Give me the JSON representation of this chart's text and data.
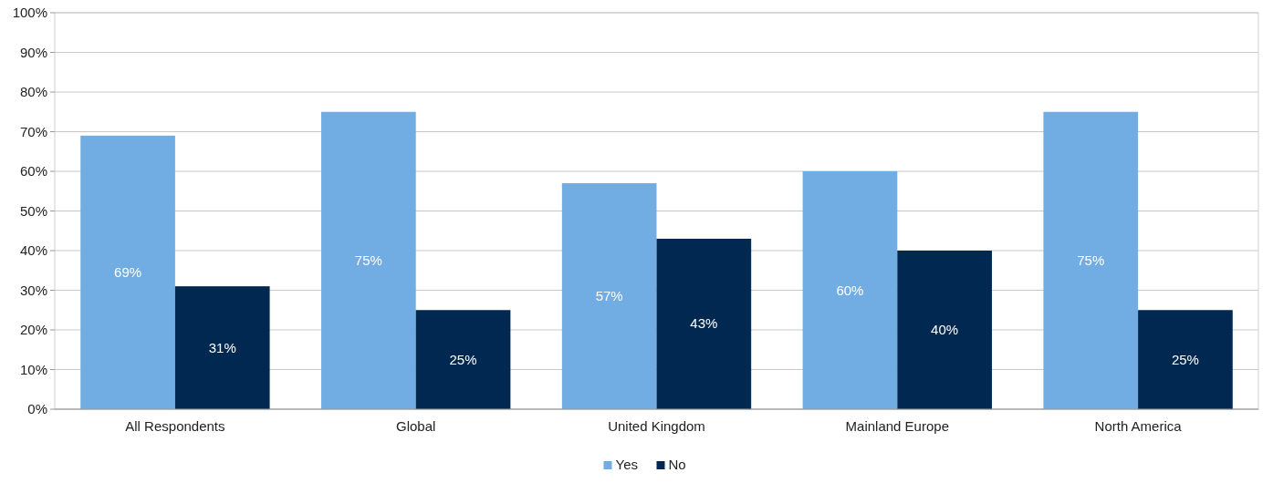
{
  "chart_data": {
    "type": "bar",
    "categories": [
      "All Respondents",
      "Global",
      "United Kingdom",
      "Mainland Europe",
      "North America"
    ],
    "series": [
      {
        "name": "Yes",
        "color": "#71ade2",
        "values": [
          69,
          75,
          57,
          60,
          75
        ],
        "value_labels": [
          "69%",
          "75%",
          "57%",
          "60%",
          "75%"
        ]
      },
      {
        "name": "No",
        "color": "#002851",
        "values": [
          31,
          25,
          43,
          40,
          25
        ],
        "value_labels": [
          "31%",
          "25%",
          "43%",
          "40%",
          "25%"
        ]
      }
    ],
    "ylim": [
      0,
      100
    ],
    "yticks": [
      {
        "value": 0,
        "label": "0%"
      },
      {
        "value": 10,
        "label": "10%"
      },
      {
        "value": 20,
        "label": "20%"
      },
      {
        "value": 30,
        "label": "30%"
      },
      {
        "value": 40,
        "label": "40%"
      },
      {
        "value": 50,
        "label": "50%"
      },
      {
        "value": 60,
        "label": "60%"
      },
      {
        "value": 70,
        "label": "70%"
      },
      {
        "value": 80,
        "label": "80%"
      },
      {
        "value": 90,
        "label": "90%"
      },
      {
        "value": 100,
        "label": "100%"
      }
    ],
    "grid": "y",
    "legend": "bottom"
  }
}
